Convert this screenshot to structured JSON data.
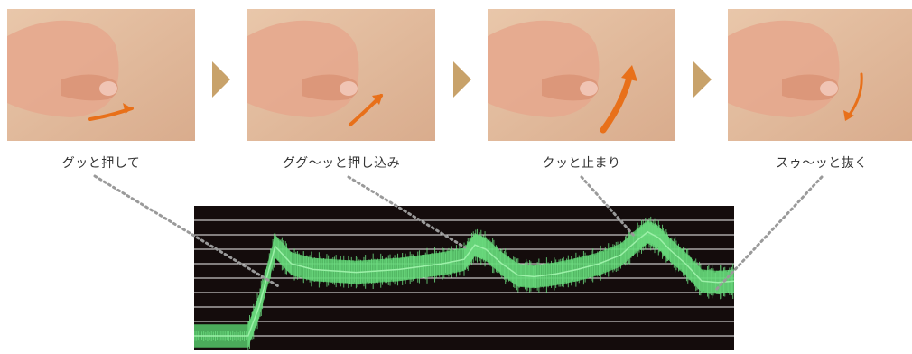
{
  "steps": [
    {
      "caption": "グッと押して",
      "arrow": "right-curve-icon"
    },
    {
      "caption": "ググ〜ッと押し込み",
      "arrow": "up-right-curve-icon"
    },
    {
      "caption": "クッと止まり",
      "arrow": "up-bold-curve-icon"
    },
    {
      "caption": "スゥ〜ッと抜く",
      "arrow": "down-curve-icon"
    }
  ],
  "colors": {
    "skin_light": "#e9c7aa",
    "skin_dark": "#d9ac8d",
    "hand": "#e6a98e",
    "arrow": "#e8701a",
    "chevron": "#c8a26a",
    "graph_bg": "#140c0c",
    "signal": "#55c86a"
  },
  "chart_data": {
    "type": "line",
    "title": "",
    "xlabel": "",
    "ylabel": "",
    "grid": true,
    "x": [
      0,
      5,
      10,
      12,
      15,
      18,
      22,
      26,
      30,
      34,
      38,
      42,
      46,
      50,
      52,
      54,
      57,
      60,
      63,
      67,
      71,
      75,
      79,
      82,
      84,
      86,
      88,
      91,
      94,
      97,
      100
    ],
    "y": [
      1.0,
      1.0,
      1.0,
      3.0,
      7.2,
      6.0,
      5.6,
      5.5,
      5.4,
      5.5,
      5.6,
      5.8,
      6.0,
      6.3,
      7.3,
      7.0,
      6.0,
      5.2,
      5.1,
      5.3,
      5.6,
      6.0,
      6.6,
      7.6,
      8.2,
      7.8,
      7.0,
      6.0,
      4.8,
      4.7,
      4.8
    ],
    "ylim": [
      0,
      10
    ],
    "band": 0.8
  }
}
